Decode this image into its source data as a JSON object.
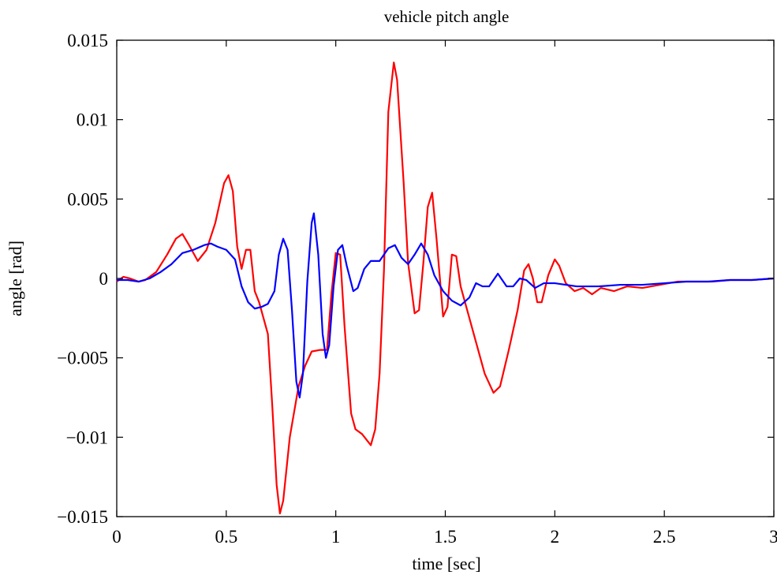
{
  "chart_data": {
    "type": "line",
    "title": "vehicle pitch angle",
    "xlabel": "time  [sec]",
    "ylabel": "angle  [rad]",
    "xlim": [
      0,
      3
    ],
    "ylim": [
      -0.015,
      0.015
    ],
    "grid": false,
    "xticks": [
      0,
      0.5,
      1,
      1.5,
      2,
      2.5,
      3
    ],
    "xtick_labels": [
      "0",
      "0.5",
      "1",
      "1.5",
      "2",
      "2.5",
      "3"
    ],
    "yticks": [
      -0.015,
      -0.01,
      -0.005,
      0,
      0.005,
      0.01,
      0.015
    ],
    "ytick_labels": [
      "−0.015",
      "−0.01",
      "−0.005",
      "0",
      "0.005",
      "0.01",
      "0.015"
    ],
    "series": [
      {
        "color": "#ff0000",
        "points": [
          [
            0,
            -0.0002
          ],
          [
            0.03,
            0.0001
          ],
          [
            0.06,
            0.0
          ],
          [
            0.1,
            -0.0002
          ],
          [
            0.13,
            -0.0001
          ],
          [
            0.18,
            0.0004
          ],
          [
            0.23,
            0.0015
          ],
          [
            0.27,
            0.0025
          ],
          [
            0.3,
            0.0028
          ],
          [
            0.33,
            0.0021
          ],
          [
            0.37,
            0.0011
          ],
          [
            0.41,
            0.0018
          ],
          [
            0.45,
            0.0035
          ],
          [
            0.49,
            0.006
          ],
          [
            0.51,
            0.0065
          ],
          [
            0.53,
            0.0055
          ],
          [
            0.55,
            0.002
          ],
          [
            0.57,
            0.0006
          ],
          [
            0.59,
            0.0018
          ],
          [
            0.61,
            0.0018
          ],
          [
            0.63,
            -0.0008
          ],
          [
            0.65,
            -0.0015
          ],
          [
            0.69,
            -0.0035
          ],
          [
            0.71,
            -0.008
          ],
          [
            0.73,
            -0.013
          ],
          [
            0.745,
            -0.0148
          ],
          [
            0.76,
            -0.014
          ],
          [
            0.79,
            -0.01
          ],
          [
            0.83,
            -0.0068
          ],
          [
            0.86,
            -0.0055
          ],
          [
            0.89,
            -0.0046
          ],
          [
            0.93,
            -0.0045
          ],
          [
            0.96,
            -0.0045
          ],
          [
            0.98,
            -0.001
          ],
          [
            1.0,
            0.0016
          ],
          [
            1.02,
            0.0015
          ],
          [
            1.04,
            -0.003
          ],
          [
            1.07,
            -0.0085
          ],
          [
            1.09,
            -0.0095
          ],
          [
            1.12,
            -0.0098
          ],
          [
            1.16,
            -0.0105
          ],
          [
            1.18,
            -0.0095
          ],
          [
            1.2,
            -0.006
          ],
          [
            1.22,
            0.0005
          ],
          [
            1.24,
            0.0105
          ],
          [
            1.265,
            0.0136
          ],
          [
            1.28,
            0.0125
          ],
          [
            1.31,
            0.006
          ],
          [
            1.33,
            0.001
          ],
          [
            1.36,
            -0.0022
          ],
          [
            1.38,
            -0.002
          ],
          [
            1.4,
            0.001
          ],
          [
            1.42,
            0.0045
          ],
          [
            1.44,
            0.0054
          ],
          [
            1.46,
            0.0025
          ],
          [
            1.49,
            -0.0024
          ],
          [
            1.51,
            -0.0018
          ],
          [
            1.53,
            0.0015
          ],
          [
            1.55,
            0.0014
          ],
          [
            1.57,
            -0.0005
          ],
          [
            1.6,
            -0.002
          ],
          [
            1.64,
            -0.004
          ],
          [
            1.68,
            -0.006
          ],
          [
            1.72,
            -0.0072
          ],
          [
            1.75,
            -0.0068
          ],
          [
            1.79,
            -0.0045
          ],
          [
            1.83,
            -0.002
          ],
          [
            1.86,
            0.0005
          ],
          [
            1.88,
            0.0009
          ],
          [
            1.9,
            0.0
          ],
          [
            1.92,
            -0.0015
          ],
          [
            1.94,
            -0.0015
          ],
          [
            1.97,
            0.0002
          ],
          [
            2.0,
            0.0012
          ],
          [
            2.02,
            0.0008
          ],
          [
            2.05,
            -0.0003
          ],
          [
            2.09,
            -0.0008
          ],
          [
            2.13,
            -0.0006
          ],
          [
            2.17,
            -0.001
          ],
          [
            2.21,
            -0.0006
          ],
          [
            2.27,
            -0.0008
          ],
          [
            2.33,
            -0.0005
          ],
          [
            2.4,
            -0.0006
          ],
          [
            2.48,
            -0.0004
          ],
          [
            2.56,
            -0.0002
          ],
          [
            2.64,
            -0.0002
          ],
          [
            2.72,
            -0.0002
          ],
          [
            2.8,
            -0.0001
          ],
          [
            2.9,
            -0.0001
          ],
          [
            3.0,
            0.0
          ]
        ]
      },
      {
        "color": "#0000ff",
        "points": [
          [
            0,
            -0.0001
          ],
          [
            0.05,
            -0.0001
          ],
          [
            0.1,
            -0.0002
          ],
          [
            0.15,
            0.0
          ],
          [
            0.2,
            0.0004
          ],
          [
            0.25,
            0.0009
          ],
          [
            0.3,
            0.0016
          ],
          [
            0.35,
            0.0018
          ],
          [
            0.4,
            0.0021
          ],
          [
            0.43,
            0.0022
          ],
          [
            0.46,
            0.002
          ],
          [
            0.5,
            0.0018
          ],
          [
            0.54,
            0.0012
          ],
          [
            0.57,
            -0.0005
          ],
          [
            0.6,
            -0.0015
          ],
          [
            0.63,
            -0.0019
          ],
          [
            0.66,
            -0.0018
          ],
          [
            0.69,
            -0.0016
          ],
          [
            0.72,
            -0.0008
          ],
          [
            0.74,
            0.0015
          ],
          [
            0.76,
            0.0025
          ],
          [
            0.78,
            0.0018
          ],
          [
            0.8,
            -0.002
          ],
          [
            0.82,
            -0.0065
          ],
          [
            0.835,
            -0.0075
          ],
          [
            0.85,
            -0.006
          ],
          [
            0.87,
            -0.0002
          ],
          [
            0.89,
            0.0035
          ],
          [
            0.9,
            0.0041
          ],
          [
            0.92,
            0.0015
          ],
          [
            0.94,
            -0.0035
          ],
          [
            0.955,
            -0.005
          ],
          [
            0.97,
            -0.0042
          ],
          [
            0.99,
            -0.0005
          ],
          [
            1.01,
            0.0018
          ],
          [
            1.03,
            0.0021
          ],
          [
            1.05,
            0.0008
          ],
          [
            1.08,
            -0.0008
          ],
          [
            1.1,
            -0.0006
          ],
          [
            1.13,
            0.0006
          ],
          [
            1.16,
            0.0011
          ],
          [
            1.2,
            0.0011
          ],
          [
            1.24,
            0.0019
          ],
          [
            1.27,
            0.0021
          ],
          [
            1.3,
            0.0013
          ],
          [
            1.33,
            0.0009
          ],
          [
            1.36,
            0.0015
          ],
          [
            1.39,
            0.0022
          ],
          [
            1.42,
            0.0015
          ],
          [
            1.45,
            0.0002
          ],
          [
            1.49,
            -0.0008
          ],
          [
            1.53,
            -0.0014
          ],
          [
            1.57,
            -0.0017
          ],
          [
            1.61,
            -0.0012
          ],
          [
            1.64,
            -0.0003
          ],
          [
            1.67,
            -0.0005
          ],
          [
            1.7,
            -0.0005
          ],
          [
            1.74,
            0.0003
          ],
          [
            1.78,
            -0.0005
          ],
          [
            1.81,
            -0.0005
          ],
          [
            1.84,
            0.0
          ],
          [
            1.87,
            -0.0001
          ],
          [
            1.91,
            -0.0006
          ],
          [
            1.95,
            -0.0003
          ],
          [
            2.0,
            -0.0003
          ],
          [
            2.05,
            -0.0004
          ],
          [
            2.1,
            -0.0005
          ],
          [
            2.2,
            -0.0005
          ],
          [
            2.3,
            -0.0004
          ],
          [
            2.4,
            -0.0004
          ],
          [
            2.5,
            -0.0003
          ],
          [
            2.6,
            -0.0002
          ],
          [
            2.7,
            -0.0002
          ],
          [
            2.8,
            -0.0001
          ],
          [
            2.9,
            -0.0001
          ],
          [
            3.0,
            0.0
          ]
        ]
      }
    ]
  }
}
